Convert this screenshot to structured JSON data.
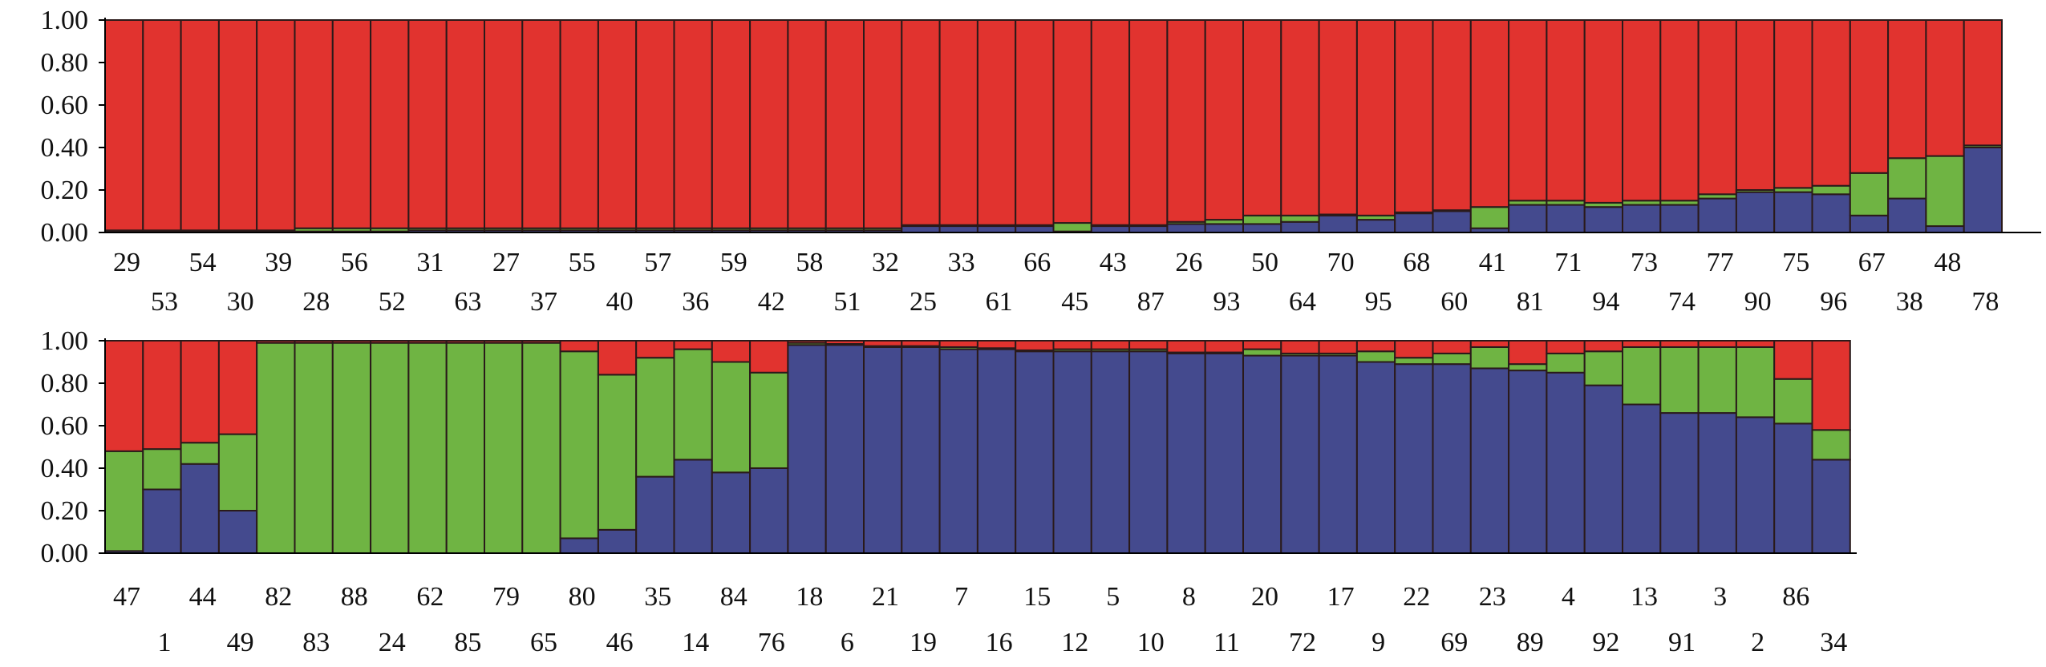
{
  "chart_data": [
    {
      "type": "stacked-bar",
      "ylim": [
        0,
        1
      ],
      "ticks": [
        "0.00",
        "0.20",
        "0.40",
        "0.60",
        "0.80",
        "1.00"
      ],
      "grid": false,
      "legend": "none",
      "series_colors": {
        "cluster1": "#444a8e",
        "cluster2": "#6fb443",
        "cluster3": "#e1332f"
      },
      "individuals": [
        "29",
        "53",
        "54",
        "30",
        "39",
        "28",
        "56",
        "52",
        "31",
        "63",
        "27",
        "37",
        "55",
        "40",
        "57",
        "36",
        "59",
        "42",
        "58",
        "51",
        "32",
        "25",
        "33",
        "61",
        "66",
        "45",
        "43",
        "87",
        "26",
        "93",
        "50",
        "64",
        "70",
        "95",
        "68",
        "60",
        "41",
        "81",
        "71",
        "94",
        "73",
        "74",
        "77",
        "90",
        "75",
        "96",
        "67",
        "38",
        "48",
        "78"
      ],
      "series": [
        {
          "key": "cluster1",
          "values": [
            0.005,
            0.005,
            0.005,
            0.005,
            0.005,
            0.005,
            0.005,
            0.005,
            0.01,
            0.01,
            0.01,
            0.01,
            0.01,
            0.01,
            0.01,
            0.01,
            0.01,
            0.01,
            0.01,
            0.01,
            0.01,
            0.03,
            0.03,
            0.03,
            0.03,
            0.005,
            0.03,
            0.03,
            0.04,
            0.04,
            0.04,
            0.05,
            0.08,
            0.06,
            0.09,
            0.1,
            0.02,
            0.13,
            0.13,
            0.12,
            0.13,
            0.13,
            0.16,
            0.19,
            0.19,
            0.18,
            0.08,
            0.16,
            0.03,
            0.4
          ]
        },
        {
          "key": "cluster2",
          "values": [
            0.005,
            0.005,
            0.005,
            0.005,
            0.005,
            0.015,
            0.015,
            0.015,
            0.01,
            0.01,
            0.01,
            0.01,
            0.01,
            0.01,
            0.01,
            0.01,
            0.01,
            0.01,
            0.01,
            0.01,
            0.01,
            0.005,
            0.005,
            0.005,
            0.005,
            0.04,
            0.005,
            0.005,
            0.01,
            0.02,
            0.04,
            0.03,
            0.005,
            0.02,
            0.005,
            0.005,
            0.1,
            0.02,
            0.02,
            0.02,
            0.02,
            0.02,
            0.02,
            0.01,
            0.02,
            0.04,
            0.2,
            0.19,
            0.33,
            0.01
          ]
        },
        {
          "key": "cluster3",
          "values": [
            0.99,
            0.99,
            0.99,
            0.99,
            0.99,
            0.98,
            0.98,
            0.98,
            0.98,
            0.98,
            0.98,
            0.98,
            0.98,
            0.98,
            0.98,
            0.98,
            0.98,
            0.98,
            0.98,
            0.98,
            0.98,
            0.965,
            0.965,
            0.965,
            0.965,
            0.955,
            0.965,
            0.965,
            0.95,
            0.94,
            0.92,
            0.92,
            0.915,
            0.92,
            0.905,
            0.895,
            0.88,
            0.85,
            0.85,
            0.86,
            0.85,
            0.85,
            0.82,
            0.8,
            0.79,
            0.78,
            0.72,
            0.65,
            0.64,
            0.59
          ]
        }
      ],
      "label_rows": [
        [
          "29",
          "54",
          "39",
          "56",
          "31",
          "27",
          "55",
          "57",
          "59",
          "58",
          "32",
          "33",
          "66",
          "43",
          "26",
          "50",
          "70",
          "68",
          "41",
          "71",
          "73",
          "77",
          "75",
          "67",
          "48"
        ],
        [
          "53",
          "30",
          "28",
          "52",
          "63",
          "37",
          "40",
          "36",
          "42",
          "51",
          "25",
          "61",
          "45",
          "87",
          "93",
          "64",
          "95",
          "60",
          "81",
          "94",
          "74",
          "90",
          "96",
          "38",
          "78"
        ]
      ]
    },
    {
      "type": "stacked-bar",
      "ylim": [
        0,
        1
      ],
      "ticks": [
        "0.00",
        "0.20",
        "0.40",
        "0.60",
        "0.80",
        "1.00"
      ],
      "grid": false,
      "legend": "none",
      "series_colors": {
        "cluster1": "#444a8e",
        "cluster2": "#6fb443",
        "cluster3": "#e1332f"
      },
      "individuals": [
        "47",
        "1",
        "44",
        "49",
        "82",
        "83",
        "88",
        "24",
        "62",
        "85",
        "79",
        "65",
        "80",
        "46",
        "35",
        "14",
        "84",
        "76",
        "18",
        "6",
        "21",
        "19",
        "7",
        "16",
        "15",
        "12",
        "5",
        "10",
        "8",
        "11",
        "20",
        "72",
        "17",
        "9",
        "22",
        "69",
        "23",
        "89",
        "4",
        "92",
        "13",
        "91",
        "3",
        "2",
        "86",
        "34"
      ],
      "series": [
        {
          "key": "cluster1",
          "values": [
            0.01,
            0.3,
            0.42,
            0.2,
            0.0,
            0.0,
            0.0,
            0.0,
            0.0,
            0.0,
            0.0,
            0.0,
            0.07,
            0.11,
            0.36,
            0.44,
            0.38,
            0.4,
            0.98,
            0.98,
            0.97,
            0.97,
            0.96,
            0.96,
            0.95,
            0.95,
            0.95,
            0.95,
            0.94,
            0.94,
            0.93,
            0.93,
            0.93,
            0.9,
            0.89,
            0.89,
            0.87,
            0.86,
            0.85,
            0.79,
            0.7,
            0.66,
            0.66,
            0.64,
            0.61,
            0.44
          ]
        },
        {
          "key": "cluster2",
          "values": [
            0.47,
            0.19,
            0.1,
            0.36,
            0.99,
            0.99,
            0.99,
            0.99,
            0.99,
            0.99,
            0.99,
            0.99,
            0.88,
            0.73,
            0.56,
            0.52,
            0.52,
            0.45,
            0.01,
            0.005,
            0.005,
            0.005,
            0.01,
            0.005,
            0.005,
            0.01,
            0.01,
            0.01,
            0.005,
            0.005,
            0.03,
            0.01,
            0.01,
            0.05,
            0.03,
            0.05,
            0.1,
            0.03,
            0.09,
            0.16,
            0.27,
            0.31,
            0.31,
            0.33,
            0.21,
            0.14
          ]
        },
        {
          "key": "cluster3",
          "values": [
            0.52,
            0.51,
            0.48,
            0.44,
            0.01,
            0.01,
            0.01,
            0.01,
            0.01,
            0.01,
            0.01,
            0.01,
            0.05,
            0.16,
            0.08,
            0.04,
            0.1,
            0.15,
            0.01,
            0.015,
            0.025,
            0.025,
            0.03,
            0.035,
            0.045,
            0.04,
            0.04,
            0.04,
            0.055,
            0.055,
            0.04,
            0.06,
            0.06,
            0.05,
            0.08,
            0.06,
            0.03,
            0.11,
            0.06,
            0.05,
            0.03,
            0.03,
            0.03,
            0.03,
            0.18,
            0.42
          ]
        }
      ],
      "label_rows": [
        [
          "47",
          "44",
          "82",
          "88",
          "62",
          "79",
          "80",
          "35",
          "84",
          "18",
          "21",
          "7",
          "15",
          "5",
          "8",
          "20",
          "17",
          "22",
          "23",
          "4",
          "13",
          "3",
          "86"
        ],
        [
          "1",
          "49",
          "83",
          "24",
          "85",
          "65",
          "46",
          "14",
          "76",
          "6",
          "19",
          "16",
          "12",
          "10",
          "11",
          "72",
          "9",
          "69",
          "89",
          "92",
          "91",
          "2",
          "34"
        ]
      ]
    }
  ]
}
